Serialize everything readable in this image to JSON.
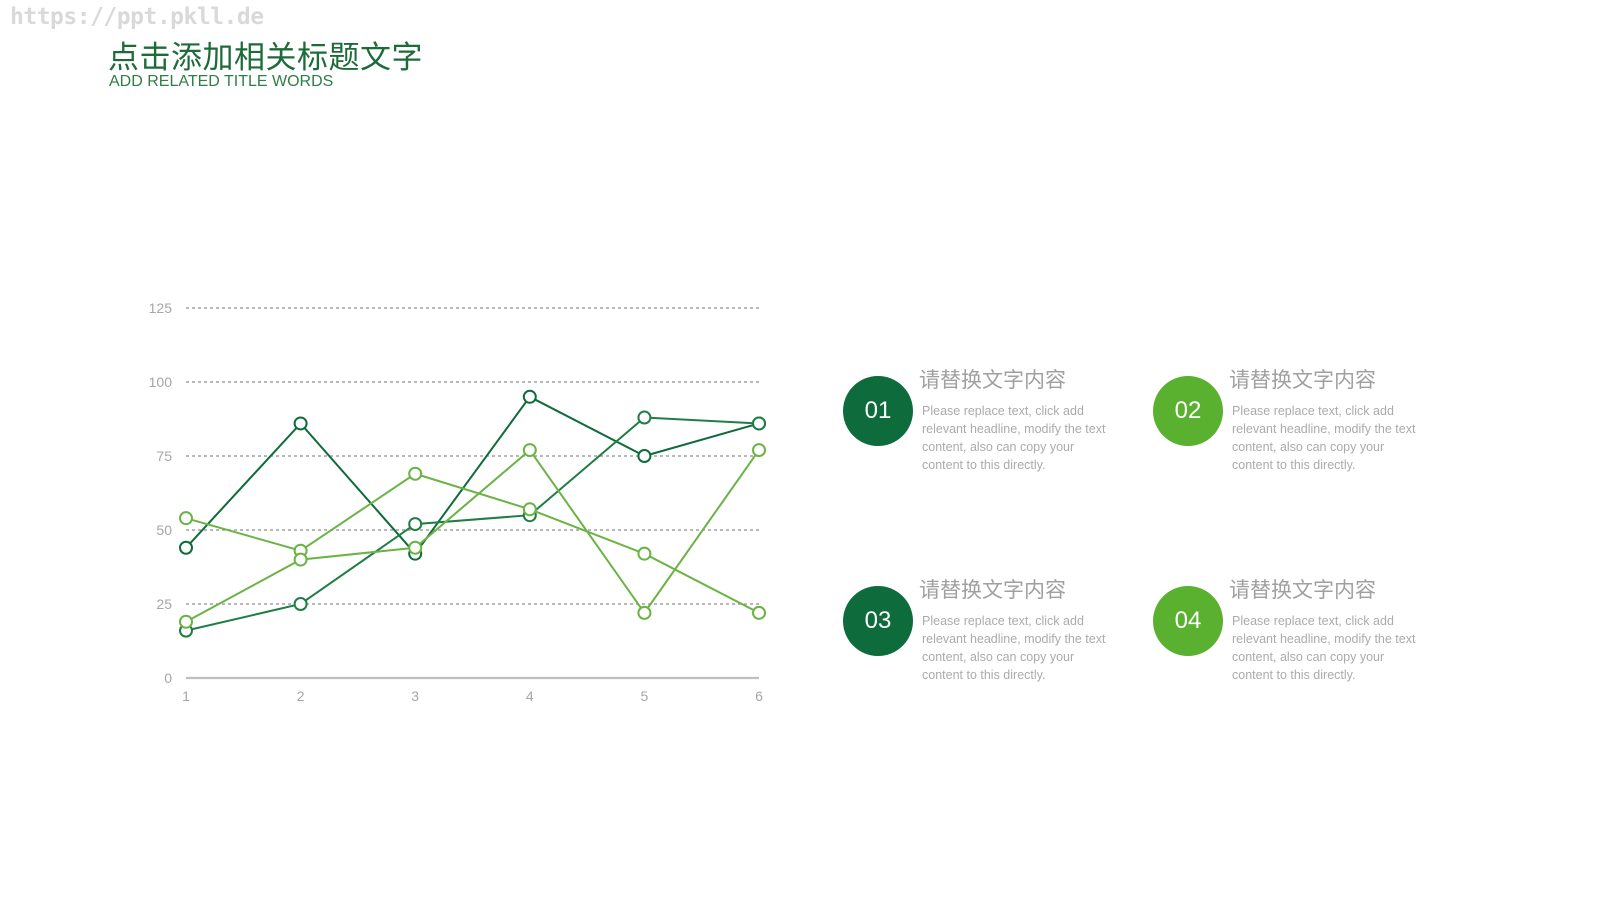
{
  "watermark": "https://ppt.pkll.de",
  "header": {
    "title": "点击添加相关标题文字",
    "subtitle": "ADD RELATED TITLE WORDS"
  },
  "colors": {
    "dark_green": "#0e6b3b",
    "mid_green": "#1f7d45",
    "light_green": "#6ab344",
    "bright_green": "#59b12f",
    "grid": "#a0a0a0",
    "axis": "#bfbfbf"
  },
  "chart_data": {
    "type": "line",
    "title": "",
    "xlabel": "",
    "ylabel": "",
    "categories": [
      "1",
      "2",
      "3",
      "4",
      "5",
      "6"
    ],
    "ylim": [
      0,
      125
    ],
    "yticks": [
      0,
      25,
      50,
      75,
      100,
      125
    ],
    "grid": true,
    "legend": "none",
    "series": [
      {
        "values": [
          44,
          86,
          42,
          95,
          75,
          86
        ],
        "color": "#0e6b3b"
      },
      {
        "values": [
          16,
          25,
          52,
          55,
          88,
          86
        ],
        "color": "#1f7d45"
      },
      {
        "values": [
          54,
          43,
          69,
          57,
          42,
          22
        ],
        "color": "#6ab344"
      },
      {
        "values": [
          19,
          40,
          44,
          77,
          22,
          77
        ],
        "color": "#6ab344"
      }
    ]
  },
  "cards": [
    {
      "number": "01",
      "color": "#0e6b3b",
      "heading": "请替换文字内容",
      "body": "Please replace text, click add relevant headline, modify the text content, also can copy your content to this directly."
    },
    {
      "number": "02",
      "color": "#59b12f",
      "heading": "请替换文字内容",
      "body": "Please replace text, click add relevant headline, modify the text content, also can copy your content to this directly."
    },
    {
      "number": "03",
      "color": "#0e6b3b",
      "heading": "请替换文字内容",
      "body": "Please replace text, click add relevant headline, modify the text content, also can copy your content to this directly."
    },
    {
      "number": "04",
      "color": "#59b12f",
      "heading": "请替换文字内容",
      "body": "Please replace text, click add relevant headline, modify the text content, also can copy your content to this directly."
    }
  ]
}
